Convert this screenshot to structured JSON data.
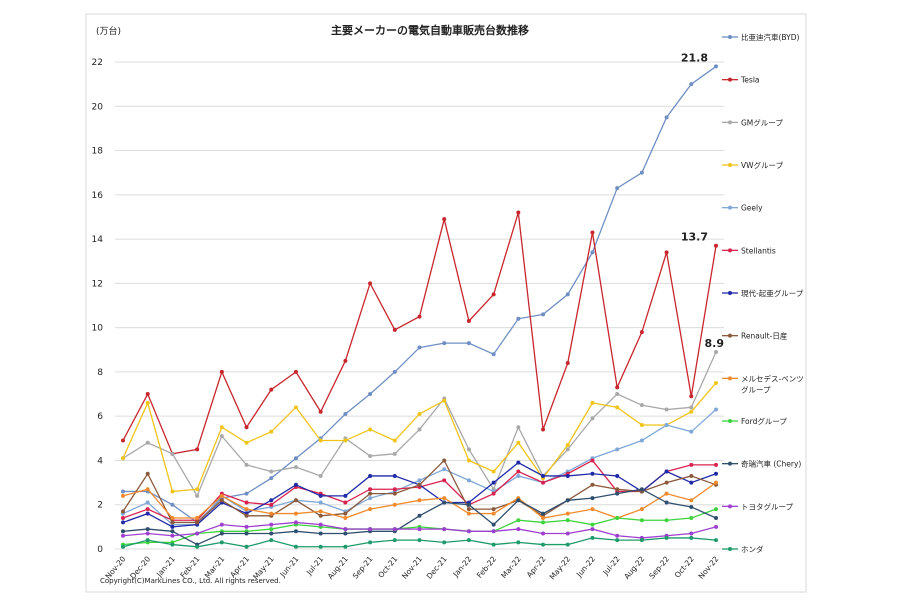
{
  "chart_data": {
    "type": "line",
    "title": "主要メーカーの電気自動車販売台数推移",
    "ylabel": "(万台)",
    "xlabel": "",
    "ylim": [
      0,
      22
    ],
    "yticks": [
      "0",
      "2",
      "4",
      "6",
      "8",
      "10",
      "12",
      "14",
      "16",
      "18",
      "20",
      "22"
    ],
    "grid": true,
    "legend_placement": "right",
    "categories": [
      "Nov-20",
      "Dec-20",
      "Jan-21",
      "Feb-21",
      "Mar-21",
      "Apr-21",
      "May-21",
      "Jun-21",
      "Jul-21",
      "Aug-21",
      "Sep-21",
      "Oct-21",
      "Nov-21",
      "Dec-21",
      "Jan-22",
      "Feb-22",
      "Mar-22",
      "Apr-22",
      "May-22",
      "Jun-22",
      "Jul-22",
      "Aug-22",
      "Sep-22",
      "Oct-22",
      "Nov-22"
    ],
    "series": [
      {
        "name": "比亜迪汽車(BYD)",
        "color": "#6f8fc4",
        "values": [
          2.6,
          2.6,
          2.0,
          1.2,
          2.3,
          2.5,
          3.2,
          4.1,
          5.0,
          6.1,
          7.0,
          8.0,
          9.1,
          9.3,
          9.3,
          8.8,
          10.4,
          10.6,
          11.5,
          13.4,
          16.3,
          17.0,
          19.5,
          21.0,
          21.8
        ]
      },
      {
        "name": "Tesla",
        "color": "#c8262c",
        "values": [
          4.9,
          7.0,
          4.3,
          4.5,
          8.0,
          5.5,
          7.2,
          8.0,
          6.2,
          8.5,
          12.0,
          9.9,
          10.5,
          14.9,
          10.3,
          11.5,
          15.2,
          5.4,
          8.4,
          14.3,
          7.3,
          9.8,
          13.4,
          6.9,
          13.7
        ]
      },
      {
        "name": "GMグループ",
        "color": "#a9a9a9",
        "values": [
          4.1,
          4.8,
          4.3,
          2.4,
          5.1,
          3.8,
          3.5,
          3.7,
          3.3,
          5.0,
          4.2,
          4.3,
          5.4,
          6.8,
          4.5,
          2.7,
          5.5,
          3.3,
          4.5,
          5.9,
          7.0,
          6.5,
          6.3,
          6.4,
          8.9
        ]
      },
      {
        "name": "VWグループ",
        "color": "#f0c419",
        "values": [
          4.1,
          6.6,
          2.6,
          2.7,
          5.5,
          4.8,
          5.3,
          6.4,
          4.9,
          4.9,
          5.4,
          4.9,
          6.1,
          6.7,
          4.0,
          3.5,
          4.8,
          3.2,
          4.7,
          6.6,
          6.4,
          5.6,
          5.6,
          6.2,
          7.5
        ]
      },
      {
        "name": "Geely",
        "color": "#7fa8d8",
        "values": [
          1.6,
          2.1,
          1.1,
          1.1,
          2.4,
          1.7,
          1.9,
          2.2,
          2.1,
          1.7,
          2.3,
          2.6,
          3.1,
          3.6,
          3.1,
          2.6,
          3.3,
          3.0,
          3.5,
          4.1,
          4.5,
          4.9,
          5.6,
          5.3,
          6.3
        ]
      },
      {
        "name": "Stellantis",
        "color": "#d9234f",
        "values": [
          1.4,
          1.8,
          1.3,
          1.3,
          2.5,
          2.1,
          2.0,
          2.8,
          2.5,
          2.1,
          2.7,
          2.7,
          2.8,
          3.1,
          2.0,
          2.5,
          3.5,
          3.0,
          3.4,
          4.0,
          2.6,
          2.6,
          3.5,
          3.8,
          3.8
        ]
      },
      {
        "name": "現代-起亜グループ",
        "color": "#1f2aa8",
        "values": [
          1.2,
          1.6,
          1.0,
          1.1,
          2.1,
          1.6,
          2.2,
          2.9,
          2.4,
          2.4,
          3.3,
          3.3,
          2.9,
          2.1,
          2.1,
          3.0,
          3.9,
          3.3,
          3.3,
          3.4,
          3.3,
          2.6,
          3.5,
          3.0,
          3.4
        ]
      },
      {
        "name": "Renault-日産",
        "color": "#8b5a3c",
        "values": [
          1.7,
          3.4,
          1.2,
          1.2,
          2.2,
          1.5,
          1.5,
          2.2,
          1.5,
          1.6,
          2.5,
          2.5,
          2.9,
          4.0,
          1.8,
          1.8,
          2.2,
          1.5,
          2.2,
          2.9,
          2.7,
          2.6,
          3.0,
          3.3,
          2.9
        ]
      },
      {
        "name": "メルセデス-ベンツグループ",
        "color": "#f08a2c",
        "values": [
          2.4,
          2.7,
          1.4,
          1.4,
          2.4,
          1.8,
          1.6,
          1.6,
          1.7,
          1.4,
          1.8,
          2.0,
          2.2,
          2.3,
          1.6,
          1.6,
          2.3,
          1.4,
          1.6,
          1.8,
          1.4,
          1.8,
          2.5,
          2.2,
          3.0
        ]
      },
      {
        "name": "Fordグループ",
        "color": "#3ed43e",
        "values": [
          0.2,
          0.3,
          0.3,
          0.7,
          0.8,
          0.8,
          0.9,
          1.1,
          1.0,
          0.9,
          0.9,
          0.9,
          1.0,
          0.9,
          0.8,
          0.8,
          1.3,
          1.2,
          1.3,
          1.1,
          1.4,
          1.3,
          1.3,
          1.4,
          1.8
        ]
      },
      {
        "name": "奇瑞汽車 (Chery)",
        "color": "#2f4f6f",
        "values": [
          0.8,
          0.9,
          0.8,
          0.2,
          0.7,
          0.7,
          0.7,
          0.8,
          0.7,
          0.7,
          0.8,
          0.8,
          1.5,
          2.1,
          2.0,
          1.1,
          2.2,
          1.6,
          2.2,
          2.3,
          2.5,
          2.7,
          2.1,
          1.9,
          1.4
        ]
      },
      {
        "name": "トヨタグループ",
        "color": "#a040d0",
        "values": [
          0.6,
          0.7,
          0.6,
          0.7,
          1.1,
          1.0,
          1.1,
          1.2,
          1.1,
          0.9,
          0.9,
          0.9,
          0.9,
          0.9,
          0.8,
          0.8,
          0.9,
          0.7,
          0.7,
          0.9,
          0.6,
          0.5,
          0.6,
          0.7,
          1.0
        ]
      },
      {
        "name": "ホンダ",
        "color": "#1f9a6a",
        "values": [
          0.1,
          0.4,
          0.2,
          0.1,
          0.3,
          0.1,
          0.4,
          0.1,
          0.1,
          0.1,
          0.3,
          0.4,
          0.4,
          0.3,
          0.4,
          0.2,
          0.3,
          0.2,
          0.2,
          0.5,
          0.4,
          0.4,
          0.5,
          0.5,
          0.4
        ]
      }
    ],
    "annotations": [
      {
        "text": "21.8",
        "series": "比亜迪汽車(BYD)",
        "x": "Nov-22",
        "value": 21.8
      },
      {
        "text": "13.7",
        "series": "Tesla",
        "x": "Nov-22",
        "value": 13.7
      },
      {
        "text": "8.9",
        "series": "GMグループ",
        "x": "Nov-22",
        "value": 8.9
      }
    ]
  },
  "copyright": "Copyright(C)MarkLines CO., Ltd. All rights reserved."
}
